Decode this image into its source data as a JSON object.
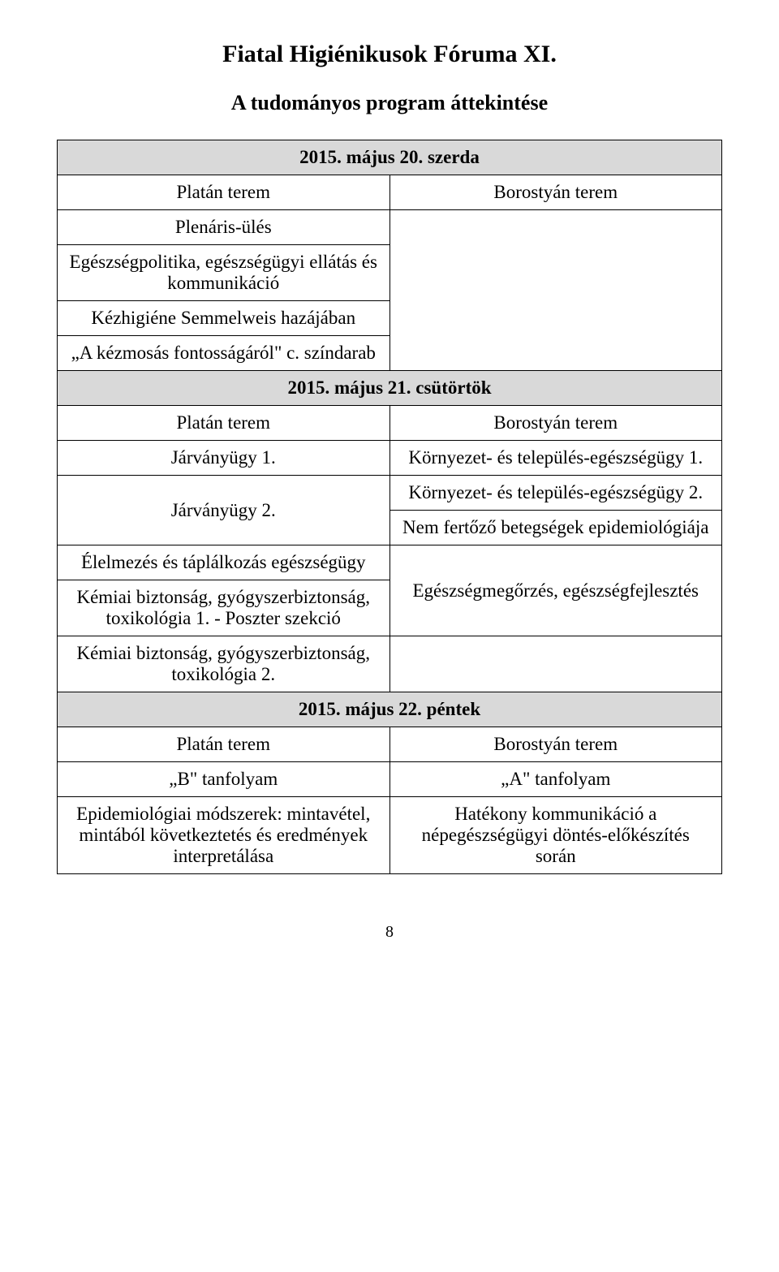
{
  "title": "Fiatal Higiénikusok Fóruma XI.",
  "subtitle": "A tudományos program áttekintése",
  "day1": {
    "date": "2015. május 20. szerda",
    "left_room": "Platán terem",
    "right_room": "Borostyán terem",
    "left_sessions": {
      "s1": "Plenáris-ülés",
      "s2": "Egészségpolitika, egészségügyi ellátás és kommunikáció",
      "s3": "Kézhigiéne Semmelweis hazájában",
      "s4": "„A kézmosás fontosságáról\" c. színdarab"
    }
  },
  "day2": {
    "date": "2015. május 21. csütörtök",
    "left_room": "Platán terem",
    "right_room": "Borostyán terem",
    "left_sessions": {
      "s1": "Járványügy 1.",
      "s2": "Járványügy 2.",
      "s3": "Élelmezés és táplálkozás egészségügy",
      "s4": "Kémiai biztonság, gyógyszerbiztonság, toxikológia 1. - Poszter szekció",
      "s5": "Kémiai biztonság, gyógyszerbiztonság, toxikológia 2."
    },
    "right_sessions": {
      "s1": "Környezet- és település-egészségügy 1.",
      "s2": "Környezet- és település-egészségügy 2.",
      "s3": "Nem fertőző betegségek epidemiológiája",
      "s4": "Egészségmegőrzés, egészségfejlesztés"
    }
  },
  "day3": {
    "date": "2015. május 22. péntek",
    "left_room": "Platán terem",
    "right_room": "Borostyán terem",
    "left_sessions": {
      "s1": "„B\" tanfolyam",
      "s2": "Epidemiológiai módszerek: mintavétel, mintából következtetés és eredmények interpretálása"
    },
    "right_sessions": {
      "s1": "„A\" tanfolyam",
      "s2": "Hatékony kommunikáció a népegészségügyi döntés-előkészítés során"
    }
  },
  "page_number": "8",
  "colors": {
    "header_bg": "#d9d9d9",
    "border": "#000000",
    "text": "#000000",
    "background": "#ffffff"
  },
  "typography": {
    "title_fontsize": 30,
    "subtitle_fontsize": 26,
    "body_fontsize": 23,
    "font_family": "Garamond"
  }
}
